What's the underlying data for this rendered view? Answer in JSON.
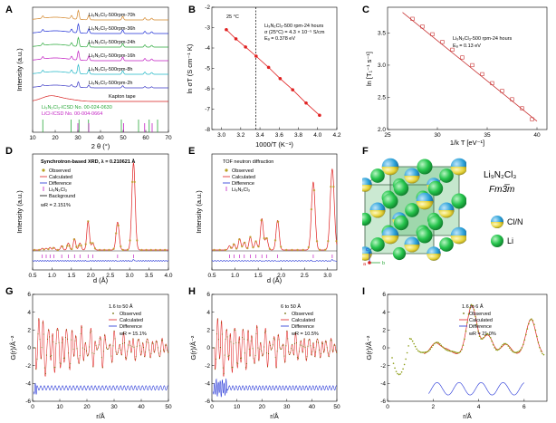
{
  "chart_data": [
    {
      "panel": "A",
      "type": "line",
      "xlabel": "2 θ (°)",
      "ylabel": "Intensity (a.u.)",
      "xlim": [
        10,
        70
      ],
      "xticks": [
        "10",
        "20",
        "30",
        "40",
        "50",
        "60",
        "70"
      ],
      "colors": [
        "#d4862a",
        "#1e2fd6",
        "#2aa83a",
        "#c21ec2",
        "#1fb6c6",
        "#3b3ac6",
        "#d81f1f",
        "#000000"
      ],
      "series": [
        {
          "name": "Li₉N₂Cl₃-500rpm-70h"
        },
        {
          "name": "Li₉N₂Cl₃-500rpm-36h"
        },
        {
          "name": "Li₉N₂Cl₃-500rpm-24h"
        },
        {
          "name": "Li₉N₂Cl₃-500rpm-16h"
        },
        {
          "name": "Li₉N₂Cl₃-500rpm-8h"
        },
        {
          "name": "Li₉N₂Cl₃-500rpm-2h"
        },
        {
          "name": "Kapton tape"
        }
      ],
      "references": [
        {
          "name": "Li₉N₂Cl₃-ICSD No. 00-024-0630",
          "color": "#2aa83a",
          "positions": [
            14.5,
            27.0,
            30.5,
            34.7,
            49.2,
            56.8,
            61.5,
            65.2
          ]
        },
        {
          "name": "LiCl-ICSD No. 00-004-0664",
          "color": "#c21ec2",
          "positions": [
            30.0,
            34.8,
            50.2,
            59.5,
            62.8
          ]
        }
      ]
    },
    {
      "panel": "B",
      "type": "line",
      "xlabel": "1000/T (K⁻¹)",
      "ylabel": "ln σT (S cm⁻¹ K)",
      "xlim": [
        2.9,
        4.2
      ],
      "ylim": [
        -8,
        -2
      ],
      "xticks": [
        "3.0",
        "3.2",
        "3.4",
        "3.6",
        "3.8",
        "4.0",
        "4.2"
      ],
      "yticks": [
        "-8",
        "-7",
        "-6",
        "-5",
        "-4",
        "-3",
        "-2"
      ],
      "x": [
        3.05,
        3.15,
        3.25,
        3.36,
        3.49,
        3.61,
        3.74,
        3.88,
        4.02
      ],
      "y": [
        -3.1,
        -3.55,
        -3.95,
        -4.4,
        -4.95,
        -5.5,
        -6.05,
        -6.7,
        -7.3
      ],
      "series_color": "#e02020",
      "marker_line_x": 3.356,
      "annotations": [
        "25 °C",
        "Li₉N₂Cl₃-500 rpm-24 hours",
        "σ (25°C) = 4.3 × 10⁻⁵ S/cm",
        "Eₐ = 0.378 eV"
      ]
    },
    {
      "panel": "C",
      "type": "scatter",
      "xlabel": "1/k T [eV⁻¹]",
      "ylabel": "ln [T₁⁻¹ s⁻¹]",
      "xlim": [
        25,
        41
      ],
      "ylim": [
        2.0,
        3.9
      ],
      "xticks": [
        "25",
        "30",
        "35",
        "40"
      ],
      "yticks": [
        "2.0",
        "2.5",
        "3.0",
        "3.5"
      ],
      "x": [
        27.5,
        28.5,
        29.5,
        30.5,
        31.5,
        32.5,
        33.5,
        34.5,
        35.5,
        36.5,
        37.5,
        38.5,
        39.5
      ],
      "y": [
        3.72,
        3.6,
        3.48,
        3.36,
        3.24,
        3.12,
        3.0,
        2.86,
        2.72,
        2.6,
        2.47,
        2.33,
        2.16
      ],
      "fit": [
        [
          26.5,
          3.82
        ],
        [
          40.0,
          2.13
        ]
      ],
      "series_color": "#c83232",
      "annotations": [
        "Li₉N₂Cl₃-500 rpm-24 hours",
        "Eₐ = 0.13 eV"
      ]
    },
    {
      "panel": "D",
      "type": "line",
      "title": "Synchrotron-based XRD, λ = 0.210621 Å",
      "xlabel": "d (Å)",
      "ylabel": "Intensity (a.u.)",
      "xlim": [
        0.5,
        4.0
      ],
      "xticks": [
        "0.5",
        "1.0",
        "1.5",
        "2.0",
        "2.5",
        "3.0",
        "3.5",
        "4.0"
      ],
      "peaks": [
        [
          0.75,
          0.02
        ],
        [
          0.85,
          0.02
        ],
        [
          0.95,
          0.03
        ],
        [
          1.05,
          0.03
        ],
        [
          1.25,
          0.05
        ],
        [
          1.42,
          0.08
        ],
        [
          1.58,
          0.13
        ],
        [
          1.72,
          0.08
        ],
        [
          1.93,
          0.33
        ],
        [
          2.05,
          0.08
        ],
        [
          2.69,
          0.32
        ],
        [
          3.1,
          1.0
        ]
      ],
      "legend": [
        "Observed",
        "Calculated",
        "Difference",
        "Li₉N₂Cl₃",
        "Background"
      ],
      "annotations": [
        "wR = 2.151%"
      ]
    },
    {
      "panel": "E",
      "type": "line",
      "title": "TOF neutron diffraction",
      "xlabel": "d (Å)",
      "ylabel": "Intensity (a.u.)",
      "xlim": [
        0.5,
        3.2
      ],
      "xticks": [
        "0.5",
        "1.0",
        "1.5",
        "2.0",
        "2.5",
        "3.0"
      ],
      "peaks": [
        [
          0.88,
          0.05
        ],
        [
          0.98,
          0.07
        ],
        [
          1.1,
          0.13
        ],
        [
          1.2,
          0.09
        ],
        [
          1.33,
          0.15
        ],
        [
          1.45,
          0.1
        ],
        [
          1.58,
          0.36
        ],
        [
          1.68,
          0.14
        ],
        [
          1.92,
          0.34
        ],
        [
          2.69,
          0.78
        ],
        [
          3.1,
          0.93
        ]
      ],
      "legend": [
        "Observed",
        "Calculated",
        "Difference",
        "Li₉N₂Cl₃"
      ]
    },
    {
      "panel": "G",
      "type": "line",
      "xlabel": "r/Å",
      "ylabel": "G(r)/Å⁻²",
      "xlim": [
        0,
        50
      ],
      "ylim": [
        -6,
        6
      ],
      "xticks": [
        "0",
        "10",
        "20",
        "30",
        "40",
        "50"
      ],
      "yticks": [
        "-6",
        "-4",
        "-2",
        "0",
        "2",
        "4",
        "6"
      ],
      "legend": [
        "1.6 to 50 Å",
        "Observed",
        "Calculated",
        "Difference",
        "wR = 15.1%"
      ]
    },
    {
      "panel": "H",
      "type": "line",
      "xlabel": "r/Å",
      "ylabel": "G(r)/Å⁻²",
      "xlim": [
        0,
        50
      ],
      "ylim": [
        -6,
        6
      ],
      "xticks": [
        "0",
        "10",
        "20",
        "30",
        "40",
        "50"
      ],
      "yticks": [
        "-6",
        "-4",
        "-2",
        "0",
        "2",
        "4",
        "6"
      ],
      "legend": [
        "6 to 50 Å",
        "Observed",
        "Calculated",
        "Difference",
        "wR = 10.5%"
      ]
    },
    {
      "panel": "I",
      "type": "line",
      "xlabel": "r/Å",
      "ylabel": "G(r)/Å⁻²",
      "xlim": [
        0,
        7
      ],
      "ylim": [
        -6,
        6
      ],
      "xticks": [
        "0",
        "2",
        "4",
        "6"
      ],
      "yticks": [
        "-6",
        "-4",
        "-2",
        "0",
        "2",
        "4",
        "6"
      ],
      "peaks": [
        [
          1.0,
          1.8
        ],
        [
          2.1,
          1.3
        ],
        [
          2.6,
          0.6
        ],
        [
          3.7,
          5.5
        ],
        [
          4.4,
          2.2
        ],
        [
          5.2,
          1.2
        ],
        [
          6.3,
          4.0
        ]
      ],
      "legend": [
        "1.6 to 6 Å",
        "Observed",
        "Calculated",
        "Difference",
        "wR = 21.0%"
      ]
    }
  ],
  "panel_letters": [
    "A",
    "B",
    "C",
    "D",
    "E",
    "F",
    "G",
    "H",
    "I"
  ],
  "structure_panel": {
    "formula": "Li₉N₂Cl₃",
    "space_group": "Fm3̅m",
    "legend": [
      "Cl/N",
      "Li"
    ],
    "axes": [
      "c",
      "a",
      "b"
    ],
    "colors": {
      "clN_blue": "#2aa0d8",
      "clN_yellow": "#e8d83a",
      "li": "#22c24a",
      "cell": "#444444",
      "frame": "#2ea84c"
    }
  }
}
